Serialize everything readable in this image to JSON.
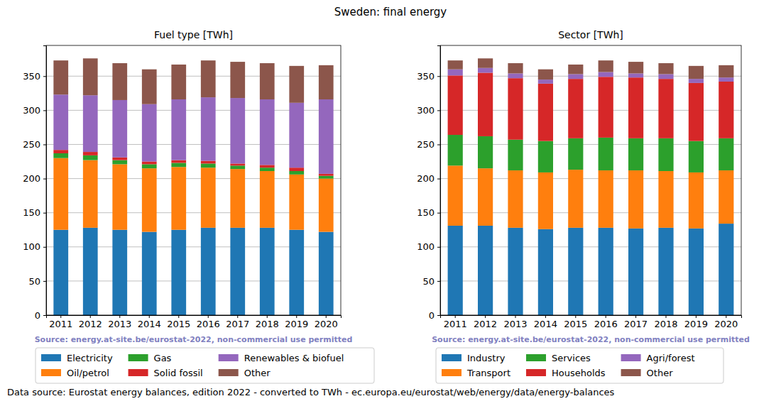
{
  "title": "Sweden: final energy",
  "note": "Data source: Eurostat energy balances, edition 2022 - converted to TWh - ec.europa.eu/eurostat/web/energy/data/energy-balances",
  "chart_data": [
    {
      "type": "bar",
      "stacked": true,
      "title": "Fuel type [TWh]",
      "source": "Source: energy.at-site.be/eurostat-2022, non-commercial use permitted",
      "categories": [
        "2011",
        "2012",
        "2013",
        "2014",
        "2015",
        "2016",
        "2017",
        "2018",
        "2019",
        "2020"
      ],
      "series": [
        {
          "name": "Electricity",
          "color": "#1f77b4",
          "values": [
            125,
            128,
            125,
            122,
            125,
            128,
            128,
            128,
            125,
            122
          ]
        },
        {
          "name": "Oil/petrol",
          "color": "#ff7f0e",
          "values": [
            105,
            99,
            96,
            93,
            92,
            88,
            86,
            83,
            81,
            78
          ]
        },
        {
          "name": "Gas",
          "color": "#2ca02c",
          "values": [
            7,
            7,
            6,
            6,
            6,
            6,
            5,
            5,
            5,
            4
          ]
        },
        {
          "name": "Solid fossil",
          "color": "#d62728",
          "values": [
            5,
            5,
            4,
            4,
            4,
            4,
            3,
            4,
            5,
            3
          ]
        },
        {
          "name": "Renewables & biofuel",
          "color": "#9467bd",
          "values": [
            81,
            83,
            84,
            84,
            89,
            93,
            96,
            96,
            95,
            109
          ]
        },
        {
          "name": "Other",
          "color": "#8c564b",
          "values": [
            50,
            54,
            54,
            51,
            51,
            54,
            53,
            53,
            54,
            50
          ]
        }
      ],
      "ylim": [
        0,
        395
      ],
      "yticks": [
        0,
        50,
        100,
        150,
        200,
        250,
        300,
        350
      ],
      "grid": true,
      "legend": "bottom"
    },
    {
      "type": "bar",
      "stacked": true,
      "title": "Sector [TWh]",
      "source": "Source: energy.at-site.be/eurostat-2022, non-commercial use permitted",
      "categories": [
        "2011",
        "2012",
        "2013",
        "2014",
        "2015",
        "2016",
        "2017",
        "2018",
        "2019",
        "2020"
      ],
      "series": [
        {
          "name": "Industry",
          "color": "#1f77b4",
          "values": [
            131,
            131,
            128,
            126,
            128,
            128,
            127,
            128,
            127,
            134
          ]
        },
        {
          "name": "Transport",
          "color": "#ff7f0e",
          "values": [
            88,
            84,
            84,
            83,
            85,
            84,
            85,
            83,
            82,
            78
          ]
        },
        {
          "name": "Services",
          "color": "#2ca02c",
          "values": [
            45,
            47,
            45,
            46,
            46,
            48,
            47,
            48,
            46,
            47
          ]
        },
        {
          "name": "Households",
          "color": "#d62728",
          "values": [
            87,
            93,
            90,
            84,
            87,
            89,
            89,
            87,
            85,
            83
          ]
        },
        {
          "name": "Agri/forest",
          "color": "#9467bd",
          "values": [
            9,
            7,
            7,
            6,
            7,
            7,
            6,
            7,
            6,
            6
          ]
        },
        {
          "name": "Other",
          "color": "#8c564b",
          "values": [
            13,
            14,
            15,
            15,
            14,
            17,
            17,
            16,
            19,
            18
          ]
        }
      ],
      "ylim": [
        0,
        395
      ],
      "yticks": [
        0,
        50,
        100,
        150,
        200,
        250,
        300,
        350
      ],
      "grid": true,
      "legend": "bottom"
    }
  ]
}
